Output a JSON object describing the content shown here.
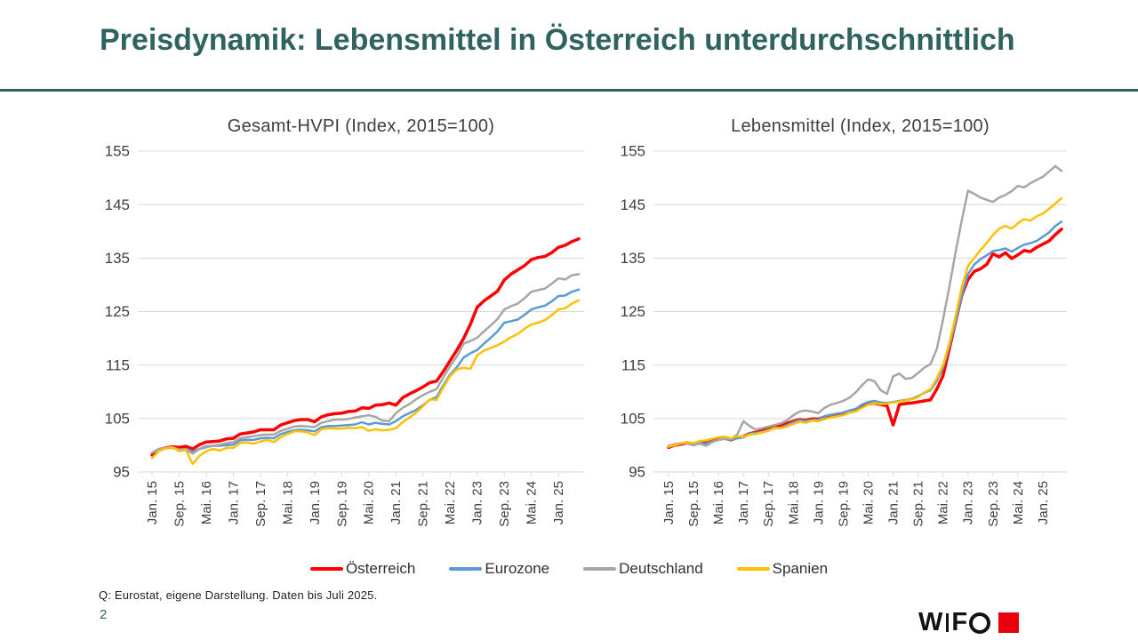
{
  "slide": {
    "title": "Preisdynamik: Lebensmittel in Österreich unterdurchschnittlich",
    "footer": "Q: Eurostat, eigene Darstellung. Daten bis Juli 2025.",
    "page_number": "2",
    "logo": {
      "w": "W",
      "f": "F"
    }
  },
  "colors": {
    "accent_teal": "#2E6360",
    "grid": "#D9D9D9",
    "axis_text": "#404040",
    "oesterreich": "#FF0000",
    "eurozone": "#5B9BD5",
    "deutschland": "#A6A6A6",
    "spanien": "#FFC000",
    "logo_red": "#E8000D"
  },
  "legend": [
    {
      "label": "Österreich",
      "color": "#FF0000"
    },
    {
      "label": "Eurozone",
      "color": "#5B9BD5"
    },
    {
      "label": "Deutschland",
      "color": "#A6A6A6"
    },
    {
      "label": "Spanien",
      "color": "#FFC000"
    }
  ],
  "chart_data": [
    {
      "type": "line",
      "title": "Gesamt-HVPI (Index, 2015=100)",
      "ylim": [
        95,
        155
      ],
      "y_ticks": [
        155,
        145,
        135,
        125,
        115,
        105,
        95
      ],
      "grid": true,
      "legend_position": "bottom-shared",
      "x_interval_months": 2,
      "x_tick_every": 4,
      "x_tick_labels": [
        "Jan. 15",
        "Sep. 15",
        "Mai. 16",
        "Jan. 17",
        "Sep. 17",
        "Mai. 18",
        "Jan. 19",
        "Sep. 19",
        "Mai. 20",
        "Jan. 21",
        "Sep. 21",
        "Mai. 22",
        "Jan. 23",
        "Sep. 23",
        "Mai. 24",
        "Jan. 25"
      ],
      "series": [
        {
          "id": "oesterreich",
          "name": "Österreich",
          "color": "#FF0000",
          "values": [
            98.2,
            99.2,
            99.5,
            99.7,
            99.6,
            99.8,
            99.3,
            100.1,
            100.6,
            100.7,
            100.8,
            101.2,
            101.3,
            102.1,
            102.3,
            102.5,
            102.9,
            102.9,
            102.9,
            103.8,
            104.2,
            104.6,
            104.8,
            104.8,
            104.4,
            105.3,
            105.7,
            105.9,
            106.0,
            106.3,
            106.4,
            107.0,
            106.9,
            107.5,
            107.6,
            107.9,
            107.5,
            108.9,
            109.6,
            110.2,
            110.9,
            111.7,
            112.0,
            113.8,
            115.8,
            117.8,
            120.0,
            122.6,
            125.8,
            127.0,
            127.9,
            128.8,
            130.9,
            132.0,
            132.8,
            133.6,
            134.7,
            135.1,
            135.3,
            136.0,
            137.0,
            137.4,
            138.1,
            138.6
          ]
        },
        {
          "id": "eurozone",
          "name": "Eurozone",
          "color": "#5B9BD5",
          "values": [
            98.6,
            99.2,
            99.5,
            99.5,
            99.2,
            99.3,
            98.8,
            99.3,
            99.8,
            99.9,
            99.9,
            100.0,
            100.1,
            100.9,
            101.0,
            101.0,
            101.3,
            101.4,
            101.3,
            102.1,
            102.5,
            102.8,
            102.9,
            102.8,
            102.6,
            103.4,
            103.6,
            103.6,
            103.7,
            103.8,
            103.9,
            104.3,
            103.9,
            104.2,
            104.0,
            103.9,
            104.5,
            105.4,
            106.0,
            106.6,
            107.5,
            108.5,
            109.0,
            111.2,
            113.2,
            114.6,
            116.4,
            117.2,
            117.8,
            119.0,
            120.1,
            121.3,
            122.9,
            123.2,
            123.5,
            124.4,
            125.4,
            125.8,
            126.1,
            126.9,
            127.9,
            128.0,
            128.7,
            129.1
          ]
        },
        {
          "id": "deutschland",
          "name": "Deutschland",
          "color": "#A6A6A6",
          "values": [
            98.6,
            99.3,
            99.5,
            99.6,
            99.2,
            99.2,
            98.4,
            99.3,
            99.6,
            99.9,
            100.1,
            100.4,
            100.6,
            101.3,
            101.5,
            101.7,
            101.9,
            102.0,
            102.0,
            102.7,
            103.1,
            103.5,
            103.6,
            103.5,
            103.4,
            104.2,
            104.5,
            104.8,
            104.8,
            104.9,
            105.2,
            105.4,
            105.6,
            105.3,
            104.6,
            104.5,
            106.0,
            107.0,
            107.7,
            108.6,
            109.4,
            110.0,
            110.5,
            112.7,
            114.8,
            116.6,
            119.0,
            119.5,
            120.1,
            121.3,
            122.4,
            123.6,
            125.4,
            126.0,
            126.5,
            127.5,
            128.7,
            129.0,
            129.3,
            130.2,
            131.2,
            131.0,
            131.8,
            132.0
          ]
        },
        {
          "id": "spanien",
          "name": "Spanien",
          "color": "#FFC000",
          "values": [
            97.6,
            98.9,
            99.4,
            99.6,
            98.9,
            99.1,
            96.5,
            98.0,
            98.9,
            99.3,
            99.0,
            99.5,
            99.5,
            100.4,
            100.5,
            100.3,
            100.7,
            101.0,
            100.6,
            101.5,
            102.1,
            102.6,
            102.6,
            102.4,
            101.9,
            103.0,
            103.2,
            103.1,
            103.1,
            103.3,
            103.2,
            103.4,
            102.7,
            103.0,
            102.8,
            102.9,
            103.2,
            104.3,
            105.2,
            106.1,
            107.3,
            108.6,
            108.5,
            110.8,
            112.9,
            114.2,
            114.5,
            114.3,
            116.8,
            117.7,
            118.2,
            118.7,
            119.4,
            120.2,
            120.8,
            121.8,
            122.6,
            122.9,
            123.4,
            124.3,
            125.4,
            125.6,
            126.5,
            127.1
          ]
        }
      ]
    },
    {
      "type": "line",
      "title": "Lebensmittel (Index, 2015=100)",
      "ylim": [
        95,
        155
      ],
      "y_ticks": [
        155,
        145,
        135,
        125,
        115,
        105,
        95
      ],
      "grid": true,
      "legend_position": "bottom-shared",
      "x_interval_months": 2,
      "x_tick_every": 4,
      "x_tick_labels": [
        "Jan. 15",
        "Sep. 15",
        "Mai. 16",
        "Jan. 17",
        "Sep. 17",
        "Mai. 18",
        "Jan. 19",
        "Sep. 19",
        "Mai. 20",
        "Jan. 21",
        "Sep. 21",
        "Mai. 22",
        "Jan. 23",
        "Sep. 23",
        "Mai. 24",
        "Jan. 25"
      ],
      "series": [
        {
          "id": "oesterreich",
          "name": "Österreich",
          "color": "#FF0000",
          "values": [
            99.6,
            100.0,
            100.2,
            100.4,
            100.1,
            100.5,
            100.6,
            100.9,
            101.2,
            101.3,
            101.0,
            101.4,
            101.6,
            102.2,
            102.4,
            102.8,
            103.2,
            103.5,
            103.6,
            104.1,
            104.5,
            104.8,
            104.7,
            104.9,
            104.9,
            105.3,
            105.6,
            105.8,
            106.0,
            106.4,
            106.6,
            107.3,
            107.7,
            107.9,
            107.6,
            107.4,
            103.8,
            107.6,
            107.8,
            107.9,
            108.1,
            108.3,
            108.5,
            110.5,
            113.0,
            118.0,
            123.0,
            128.0,
            131.0,
            132.5,
            133.0,
            133.8,
            135.8,
            135.2,
            136.0,
            134.9,
            135.6,
            136.4,
            136.2,
            137.0,
            137.6,
            138.2,
            139.4,
            140.4
          ]
        },
        {
          "id": "eurozone",
          "name": "Eurozone",
          "color": "#5B9BD5",
          "values": [
            99.9,
            100.1,
            100.3,
            100.5,
            100.2,
            100.4,
            100.3,
            100.7,
            101.0,
            101.2,
            101.0,
            101.3,
            101.5,
            102.2,
            102.3,
            102.5,
            102.9,
            103.2,
            103.3,
            103.8,
            104.3,
            104.7,
            104.6,
            104.7,
            104.8,
            105.4,
            105.7,
            105.9,
            106.1,
            106.5,
            106.8,
            107.6,
            108.1,
            108.3,
            108.0,
            107.9,
            108.1,
            108.3,
            108.5,
            108.7,
            109.2,
            109.8,
            110.3,
            112.0,
            114.5,
            118.5,
            123.0,
            128.0,
            132.0,
            133.8,
            134.8,
            135.5,
            136.3,
            136.5,
            136.8,
            136.2,
            136.9,
            137.5,
            137.8,
            138.2,
            139.0,
            139.8,
            141.0,
            141.8
          ]
        },
        {
          "id": "deutschland",
          "name": "Deutschland",
          "color": "#A6A6A6",
          "values": [
            99.8,
            100.2,
            100.4,
            100.3,
            100.0,
            100.3,
            99.9,
            100.6,
            101.0,
            101.3,
            101.2,
            102.0,
            104.5,
            103.6,
            102.9,
            103.2,
            103.5,
            103.8,
            104.1,
            104.7,
            105.6,
            106.3,
            106.5,
            106.3,
            106.0,
            107.0,
            107.6,
            107.9,
            108.3,
            108.9,
            109.9,
            111.2,
            112.3,
            112.0,
            110.3,
            109.6,
            112.9,
            113.4,
            112.4,
            112.6,
            113.5,
            114.5,
            115.2,
            118.0,
            123.5,
            129.5,
            136.0,
            142.0,
            147.6,
            147.0,
            146.3,
            145.9,
            145.5,
            146.3,
            146.8,
            147.5,
            148.5,
            148.2,
            149.0,
            149.6,
            150.2,
            151.2,
            152.2,
            151.3
          ]
        },
        {
          "id": "spanien",
          "name": "Spanien",
          "color": "#FFC000",
          "values": [
            99.7,
            100.0,
            100.4,
            100.6,
            100.4,
            100.8,
            100.9,
            101.2,
            101.5,
            101.6,
            101.3,
            101.7,
            101.6,
            102.0,
            102.1,
            102.4,
            102.7,
            103.3,
            103.2,
            103.5,
            104.0,
            104.4,
            104.2,
            104.6,
            104.5,
            104.9,
            105.2,
            105.4,
            105.6,
            106.1,
            106.3,
            107.0,
            107.6,
            107.9,
            107.7,
            107.8,
            108.0,
            108.2,
            108.4,
            108.6,
            109.0,
            109.9,
            110.5,
            112.5,
            115.0,
            119.0,
            124.0,
            129.5,
            133.5,
            135.0,
            136.5,
            137.8,
            139.3,
            140.5,
            141.0,
            140.5,
            141.5,
            142.3,
            142.0,
            142.8,
            143.3,
            144.2,
            145.2,
            146.2
          ]
        }
      ]
    }
  ]
}
